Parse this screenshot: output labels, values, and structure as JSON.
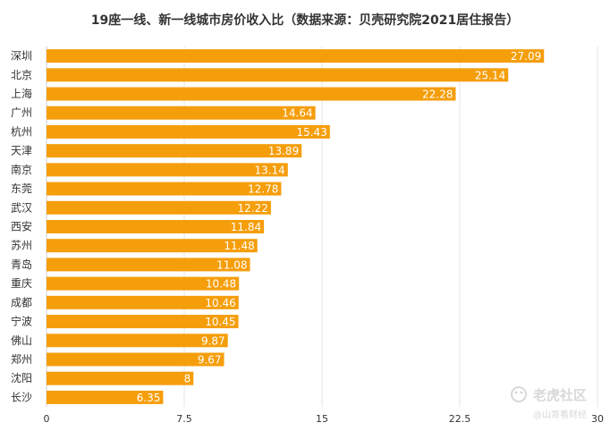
{
  "title": "19座一线、新一线城市房价收入比（数据来源：贝壳研究院2021居住报告）",
  "watermark": {
    "brand": "老虎社区",
    "author": "@山哥看财经"
  },
  "colors": {
    "bar": "#f59e0b",
    "grid": "#e6e6e6",
    "text": "#333333"
  },
  "chart_data": {
    "type": "bar",
    "orientation": "horizontal",
    "title": "19座一线、新一线城市房价收入比（数据来源：贝壳研究院2021居住报告）",
    "categories": [
      "深圳",
      "北京",
      "上海",
      "广州",
      "杭州",
      "天津",
      "南京",
      "东莞",
      "武汉",
      "西安",
      "苏州",
      "青岛",
      "重庆",
      "成都",
      "宁波",
      "佛山",
      "郑州",
      "沈阳",
      "长沙"
    ],
    "values": [
      27.09,
      25.14,
      22.28,
      14.64,
      15.43,
      13.89,
      13.14,
      12.78,
      12.22,
      11.84,
      11.48,
      11.08,
      10.48,
      10.46,
      10.45,
      9.87,
      9.67,
      8,
      6.35
    ],
    "value_labels": [
      "27.09",
      "25.14",
      "22.28",
      "14.64",
      "15.43",
      "13.89",
      "13.14",
      "12.78",
      "12.22",
      "11.84",
      "11.48",
      "11.08",
      "10.48",
      "10.46",
      "10.45",
      "9.87",
      "9.67",
      "8",
      "6.35"
    ],
    "xticks": [
      0,
      7.5,
      15,
      22.5,
      30
    ],
    "xtick_labels": [
      "0",
      "7.5",
      "15",
      "22.5",
      "30"
    ],
    "xlim": [
      0,
      30
    ],
    "grid": true,
    "legend": "none"
  }
}
